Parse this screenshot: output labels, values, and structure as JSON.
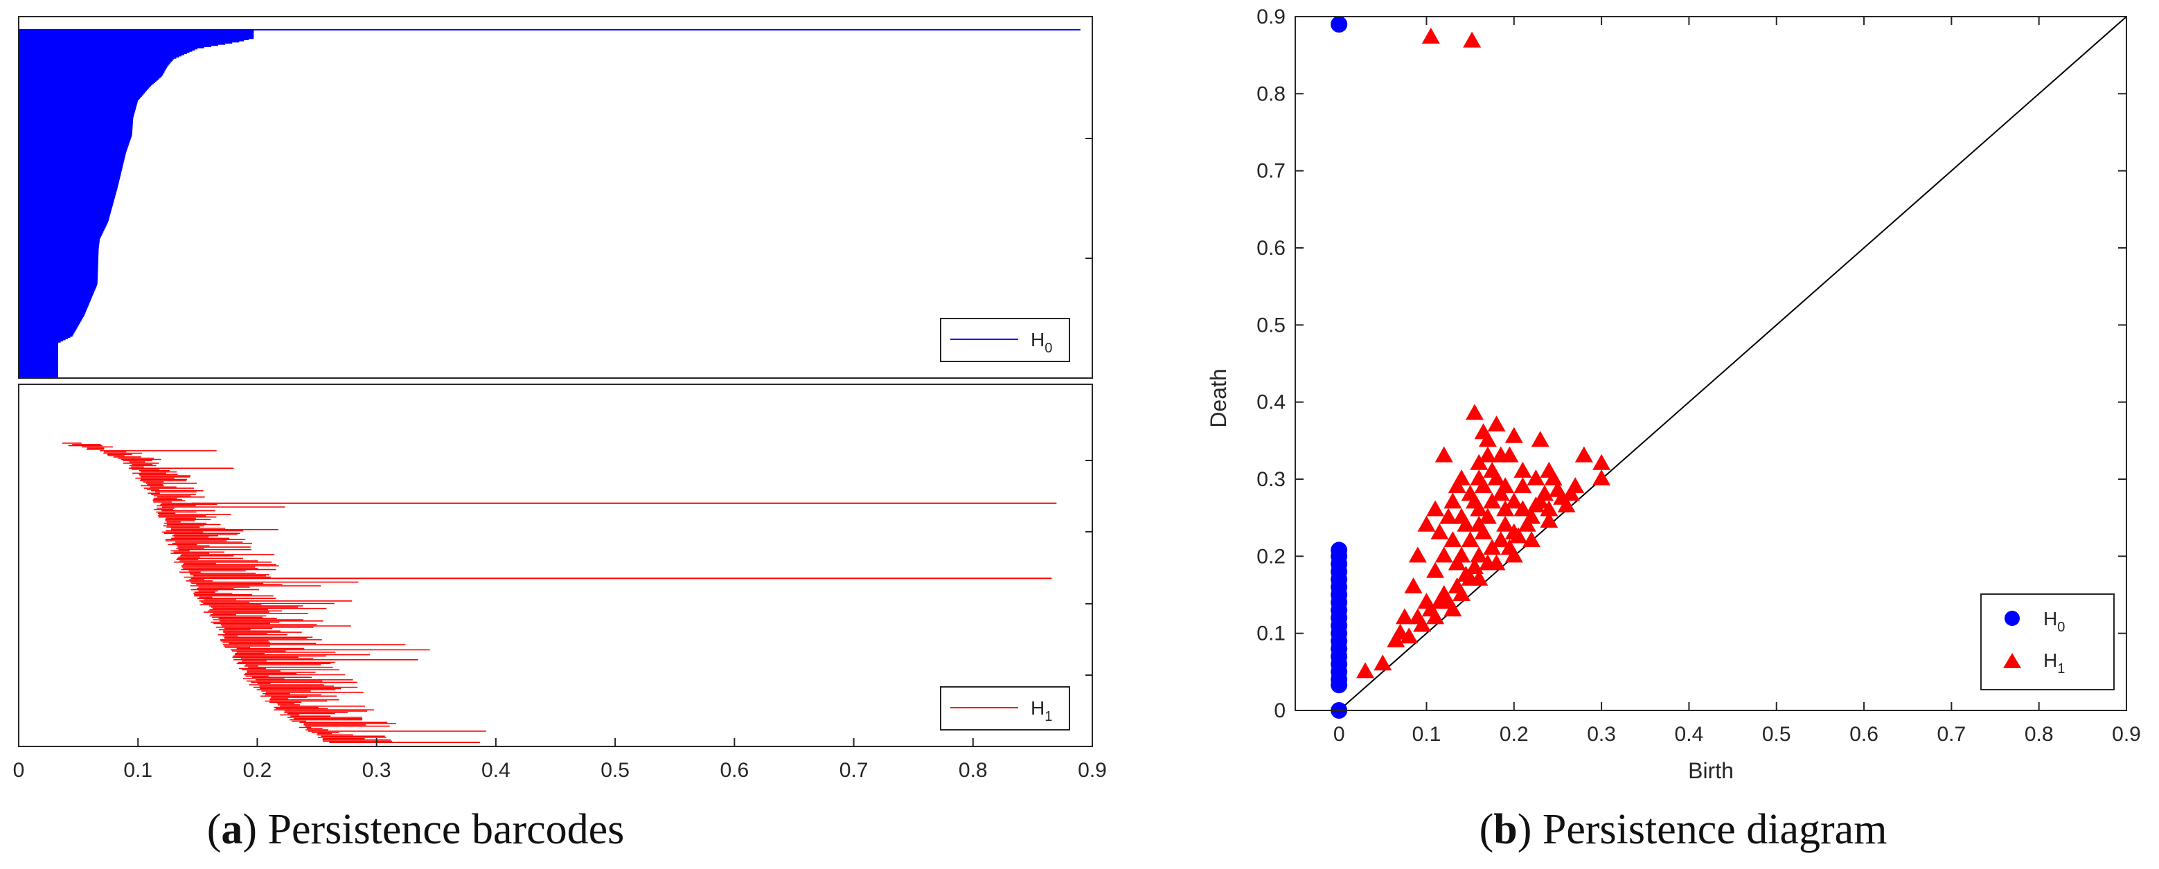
{
  "chart_data": [
    {
      "id": "barcode-h0",
      "type": "barcode",
      "xlim": [
        0,
        0.9
      ],
      "xticks": [],
      "legend": {
        "label": "H",
        "subscript": "0",
        "position": "bottom-right"
      },
      "color": "#0000ff",
      "num_bars": 300,
      "longest_bar": {
        "birth": 0,
        "death": 0.89
      },
      "death_profile": [
        [
          0,
          0.197
        ],
        [
          0.02,
          0.197
        ],
        [
          0.03,
          0.185
        ],
        [
          0.05,
          0.15
        ],
        [
          0.08,
          0.13
        ],
        [
          0.1,
          0.125
        ],
        [
          0.13,
          0.12
        ],
        [
          0.16,
          0.11
        ],
        [
          0.2,
          0.1
        ],
        [
          0.25,
          0.096
        ],
        [
          0.3,
          0.095
        ],
        [
          0.35,
          0.09
        ],
        [
          0.45,
          0.083
        ],
        [
          0.55,
          0.075
        ],
        [
          0.6,
          0.068
        ],
        [
          0.63,
          0.067
        ],
        [
          0.73,
          0.066
        ],
        [
          0.82,
          0.055
        ],
        [
          0.88,
          0.045
        ],
        [
          0.9,
          0.033
        ],
        [
          1,
          0.033
        ]
      ]
    },
    {
      "id": "barcode-h1",
      "type": "barcode",
      "xlim": [
        0,
        0.9
      ],
      "xticks": [
        "0",
        "0.1",
        "0.2",
        "0.3",
        "0.4",
        "0.5",
        "0.6",
        "0.7",
        "0.8",
        "0.9"
      ],
      "legend": {
        "label": "H",
        "subscript": "1",
        "position": "bottom-right"
      },
      "color": "#ff0000",
      "num_bars": 240,
      "long_bars": [
        {
          "birth": 0.145,
          "death": 0.87,
          "row_frac": 0.2
        },
        {
          "birth": 0.16,
          "death": 0.866,
          "row_frac": 0.45
        }
      ]
    },
    {
      "id": "persistence-diagram",
      "type": "scatter",
      "xlabel": "Birth",
      "ylabel": "Death",
      "xlim": [
        -0.05,
        0.9
      ],
      "ylim": [
        0,
        0.9
      ],
      "xticks": [
        "0",
        "0.1",
        "0.2",
        "0.3",
        "0.4",
        "0.5",
        "0.6",
        "0.7",
        "0.8",
        "0.9"
      ],
      "yticks": [
        "0",
        "0.1",
        "0.2",
        "0.3",
        "0.4",
        "0.5",
        "0.6",
        "0.7",
        "0.8",
        "0.9"
      ],
      "diagonal": true,
      "legend": {
        "position": "bottom-right",
        "entries": [
          {
            "label": "H",
            "subscript": "0",
            "marker": "circle",
            "color": "#0000ff"
          },
          {
            "label": "H",
            "subscript": "1",
            "marker": "triangle",
            "color": "#ff0000"
          }
        ]
      },
      "series": [
        {
          "name": "H0",
          "marker": "circle",
          "color": "#0000ff",
          "points": [
            [
              0,
              0.89
            ],
            [
              0,
              0
            ],
            [
              0,
              0.208
            ],
            [
              0,
              0.2
            ],
            [
              0,
              0.19
            ],
            [
              0,
              0.18
            ],
            [
              0,
              0.17
            ],
            [
              0,
              0.16
            ],
            [
              0,
              0.15
            ],
            [
              0,
              0.14
            ],
            [
              0,
              0.13
            ],
            [
              0,
              0.12
            ],
            [
              0,
              0.11
            ],
            [
              0,
              0.1
            ],
            [
              0,
              0.09
            ],
            [
              0,
              0.08
            ],
            [
              0,
              0.07
            ],
            [
              0,
              0.06
            ],
            [
              0,
              0.05
            ],
            [
              0,
              0.04
            ],
            [
              0,
              0.033
            ]
          ]
        },
        {
          "name": "H1",
          "marker": "triangle",
          "color": "#ff0000",
          "points": [
            [
              0.105,
              0.873
            ],
            [
              0.152,
              0.868
            ],
            [
              0.155,
              0.385
            ],
            [
              0.18,
              0.37
            ],
            [
              0.165,
              0.36
            ],
            [
              0.2,
              0.355
            ],
            [
              0.17,
              0.35
            ],
            [
              0.23,
              0.35
            ],
            [
              0.12,
              0.33
            ],
            [
              0.185,
              0.33
            ],
            [
              0.16,
              0.32
            ],
            [
              0.28,
              0.33
            ],
            [
              0.3,
              0.32
            ],
            [
              0.11,
              0.26
            ],
            [
              0.13,
              0.27
            ],
            [
              0.14,
              0.3
            ],
            [
              0.21,
              0.31
            ],
            [
              0.24,
              0.31
            ],
            [
              0.225,
              0.3
            ],
            [
              0.3,
              0.3
            ],
            [
              0.25,
              0.285
            ],
            [
              0.265,
              0.28
            ],
            [
              0.19,
              0.29
            ],
            [
              0.1,
              0.24
            ],
            [
              0.115,
              0.23
            ],
            [
              0.09,
              0.2
            ],
            [
              0.085,
              0.16
            ],
            [
              0.07,
              0.1
            ],
            [
              0.075,
              0.12
            ],
            [
              0.065,
              0.09
            ],
            [
              0.05,
              0.06
            ],
            [
              0.03,
              0.05
            ],
            [
              0.1,
              0.14
            ],
            [
              0.11,
              0.18
            ],
            [
              0.12,
              0.15
            ],
            [
              0.13,
              0.22
            ],
            [
              0.14,
              0.2
            ],
            [
              0.15,
              0.17
            ],
            [
              0.16,
              0.26
            ],
            [
              0.17,
              0.25
            ],
            [
              0.175,
              0.21
            ],
            [
              0.18,
              0.3
            ],
            [
              0.19,
              0.24
            ],
            [
              0.2,
              0.23
            ],
            [
              0.21,
              0.26
            ],
            [
              0.22,
              0.25
            ],
            [
              0.23,
              0.27
            ],
            [
              0.24,
              0.26
            ],
            [
              0.255,
              0.275
            ],
            [
              0.27,
              0.29
            ],
            [
              0.12,
              0.2
            ],
            [
              0.15,
              0.22
            ],
            [
              0.16,
              0.2
            ],
            [
              0.17,
              0.19
            ],
            [
              0.185,
              0.22
            ],
            [
              0.195,
              0.21
            ],
            [
              0.205,
              0.225
            ],
            [
              0.215,
              0.24
            ],
            [
              0.125,
              0.14
            ],
            [
              0.135,
              0.16
            ],
            [
              0.145,
              0.175
            ],
            [
              0.155,
              0.185
            ],
            [
              0.165,
              0.23
            ],
            [
              0.175,
              0.27
            ],
            [
              0.14,
              0.25
            ],
            [
              0.15,
              0.28
            ],
            [
              0.16,
              0.3
            ],
            [
              0.17,
              0.33
            ],
            [
              0.185,
              0.28
            ],
            [
              0.2,
              0.27
            ],
            [
              0.095,
              0.11
            ],
            [
              0.105,
              0.13
            ],
            [
              0.115,
              0.14
            ],
            [
              0.135,
              0.19
            ],
            [
              0.145,
              0.24
            ],
            [
              0.155,
              0.27
            ],
            [
              0.165,
              0.29
            ],
            [
              0.195,
              0.33
            ],
            [
              0.21,
              0.29
            ],
            [
              0.08,
              0.095
            ],
            [
              0.09,
              0.12
            ],
            [
              0.11,
              0.12
            ],
            [
              0.13,
              0.13
            ],
            [
              0.14,
              0.15
            ],
            [
              0.16,
              0.17
            ],
            [
              0.18,
              0.19
            ],
            [
              0.2,
              0.2
            ],
            [
              0.22,
              0.22
            ],
            [
              0.24,
              0.245
            ],
            [
              0.26,
              0.265
            ],
            [
              0.125,
              0.25
            ],
            [
              0.135,
              0.29
            ],
            [
              0.16,
              0.24
            ],
            [
              0.175,
              0.31
            ],
            [
              0.19,
              0.26
            ],
            [
              0.225,
              0.265
            ],
            [
              0.235,
              0.28
            ],
            [
              0.245,
              0.3
            ]
          ]
        }
      ]
    }
  ],
  "captions": {
    "a_letter": "a",
    "a_text": " Persistence barcodes",
    "b_letter": "b",
    "b_text": " Persistence diagram"
  }
}
